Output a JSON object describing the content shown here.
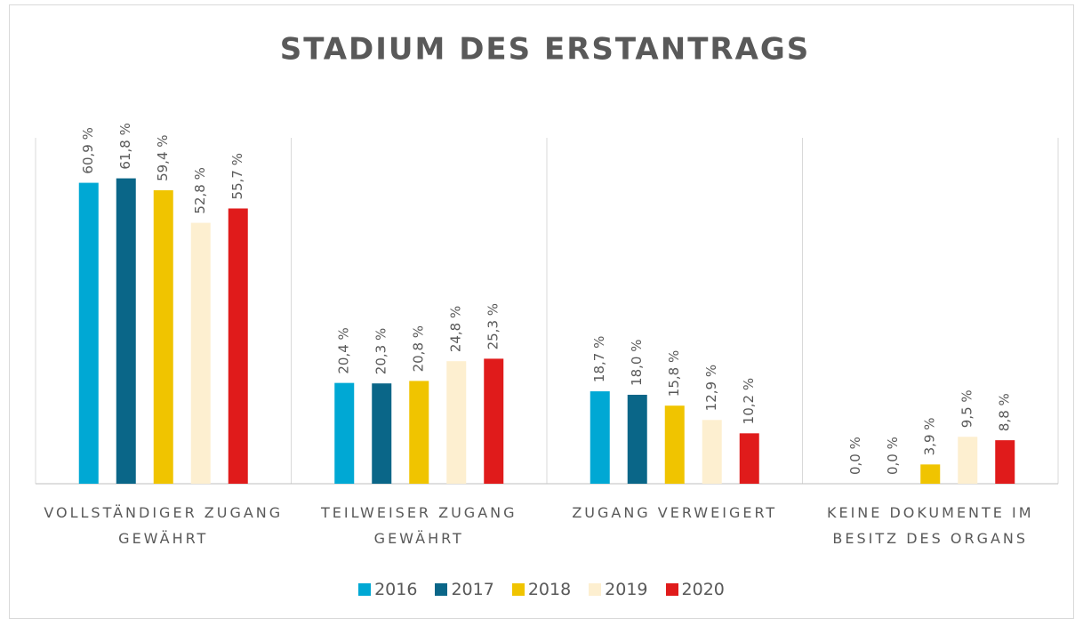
{
  "chart_data": {
    "type": "bar",
    "title": "STADIUM DES ERSTANTRAGS",
    "categories": [
      "VOLLSTÄNDIGER ZUGANG GEWÄHRT",
      "TEILWEISER ZUGANG GEWÄHRT",
      "ZUGANG VERWEIGERT",
      "KEINE DOKUMENTE IM BESITZ DES ORGANS"
    ],
    "series": [
      {
        "name": "2016",
        "color": "#00a8d4",
        "values": [
          60.9,
          20.4,
          18.7,
          0.0
        ],
        "value_labels": [
          "60,9 %",
          "20,4 %",
          "18,7 %",
          "0,0 %"
        ]
      },
      {
        "name": "2017",
        "color": "#0a6688",
        "values": [
          61.8,
          20.3,
          18.0,
          0.0
        ],
        "value_labels": [
          "61,8 %",
          "20,3 %",
          "18,0 %",
          "0,0 %"
        ]
      },
      {
        "name": "2018",
        "color": "#f0c400",
        "values": [
          59.4,
          20.8,
          15.8,
          3.9
        ],
        "value_labels": [
          "59,4 %",
          "20,8 %",
          "15,8 %",
          "3,9 %"
        ]
      },
      {
        "name": "2019",
        "color": "#fdefd0",
        "values": [
          52.8,
          24.8,
          12.9,
          9.5
        ],
        "value_labels": [
          "52,8 %",
          "24,8 %",
          "12,9 %",
          "9,5 %"
        ]
      },
      {
        "name": "2020",
        "color": "#e01b1b",
        "values": [
          55.7,
          25.3,
          10.2,
          8.8
        ],
        "value_labels": [
          "55,7 %",
          "25,3 %",
          "10,2 %",
          "8,8 %"
        ]
      }
    ],
    "ylim": [
      0,
      70
    ],
    "legend": "bottom"
  }
}
